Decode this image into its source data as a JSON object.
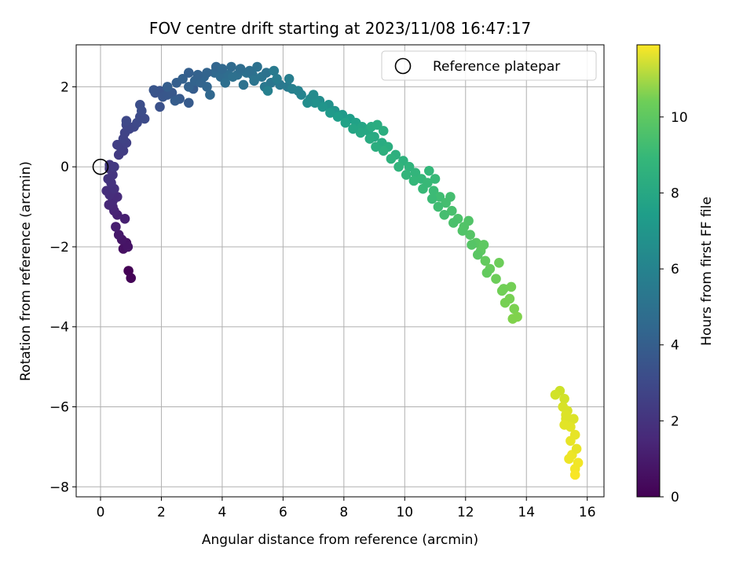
{
  "chart_data": {
    "type": "scatter",
    "title": "FOV centre drift starting at 2023/11/08 16:47:17",
    "xlabel": "Angular distance from reference (arcmin)",
    "ylabel": "Rotation from reference (arcmin)",
    "xlim": [
      -0.8,
      16.55
    ],
    "ylim": [
      -8.25,
      3.05
    ],
    "xticks": [
      0,
      2,
      4,
      6,
      8,
      10,
      12,
      14,
      16
    ],
    "yticks": [
      -8,
      -6,
      -4,
      -2,
      0,
      2
    ],
    "grid": true,
    "legend": {
      "position": "top-right",
      "entries": [
        "Reference platepar"
      ]
    },
    "colorbar": {
      "label": "Hours from first FF file",
      "colormap": "viridis",
      "range": [
        0,
        11.9
      ],
      "ticks": [
        0,
        2,
        4,
        6,
        8,
        10
      ]
    },
    "reference_point": {
      "x": 0,
      "y": 0,
      "label": "Reference platepar"
    },
    "x_unit": "arcmin",
    "y_unit": "arcmin",
    "series": [
      {
        "points_xy": [
          [
            0.92,
            -2.6
          ],
          [
            1.0,
            -2.78
          ],
          [
            0.75,
            -2.05
          ],
          [
            0.85,
            -1.9
          ],
          [
            0.9,
            -2.0
          ],
          [
            0.7,
            -1.82
          ],
          [
            0.6,
            -1.7
          ],
          [
            0.5,
            -1.5
          ],
          [
            0.8,
            -1.3
          ],
          [
            0.55,
            -1.2
          ],
          [
            0.45,
            -1.1
          ],
          [
            0.4,
            -1.0
          ],
          [
            0.28,
            -0.95
          ],
          [
            0.4,
            -0.85
          ],
          [
            0.55,
            -0.75
          ],
          [
            0.3,
            -0.7
          ],
          [
            0.2,
            -0.6
          ],
          [
            0.45,
            -0.55
          ],
          [
            0.35,
            -0.4
          ],
          [
            0.25,
            -0.3
          ],
          [
            0.4,
            -0.2
          ],
          [
            0.3,
            -0.05
          ],
          [
            0.3,
            0.05
          ],
          [
            0.45,
            0.0
          ],
          [
            0.6,
            0.3
          ],
          [
            0.75,
            0.4
          ],
          [
            0.65,
            0.5
          ],
          [
            0.55,
            0.55
          ],
          [
            0.85,
            0.6
          ],
          [
            0.75,
            0.7
          ],
          [
            0.8,
            0.85
          ],
          [
            0.95,
            0.95
          ],
          [
            0.85,
            1.05
          ],
          [
            1.1,
            1.0
          ],
          [
            0.85,
            1.15
          ],
          [
            1.2,
            1.1
          ],
          [
            1.3,
            1.25
          ],
          [
            1.45,
            1.2
          ],
          [
            1.35,
            1.4
          ],
          [
            1.3,
            1.55
          ],
          [
            1.95,
            1.5
          ],
          [
            1.8,
            1.85
          ],
          [
            1.95,
            1.9
          ],
          [
            1.75,
            1.92
          ],
          [
            2.05,
            1.75
          ],
          [
            2.2,
            1.8
          ],
          [
            2.35,
            1.85
          ],
          [
            2.6,
            1.7
          ],
          [
            2.9,
            1.6
          ],
          [
            3.05,
            1.95
          ],
          [
            2.45,
            1.65
          ],
          [
            2.2,
            2.0
          ],
          [
            2.5,
            2.1
          ],
          [
            2.7,
            2.2
          ],
          [
            2.9,
            2.0
          ],
          [
            3.1,
            2.15
          ],
          [
            3.3,
            2.1
          ],
          [
            3.4,
            2.25
          ],
          [
            3.5,
            2.0
          ],
          [
            3.6,
            1.8
          ],
          [
            3.75,
            2.35
          ],
          [
            3.95,
            2.25
          ],
          [
            4.2,
            2.3
          ],
          [
            4.5,
            2.3
          ],
          [
            4.8,
            2.35
          ],
          [
            5.0,
            2.3
          ],
          [
            5.3,
            2.25
          ],
          [
            5.6,
            2.1
          ],
          [
            5.9,
            2.05
          ],
          [
            6.15,
            2.0
          ],
          [
            2.9,
            2.35
          ],
          [
            3.2,
            2.3
          ],
          [
            3.5,
            2.35
          ],
          [
            3.8,
            2.5
          ],
          [
            4.0,
            2.45
          ],
          [
            4.3,
            2.5
          ],
          [
            4.6,
            2.45
          ],
          [
            4.9,
            2.4
          ],
          [
            5.15,
            2.5
          ],
          [
            5.45,
            2.35
          ],
          [
            4.35,
            2.25
          ],
          [
            4.1,
            2.1
          ],
          [
            4.7,
            2.05
          ],
          [
            5.05,
            2.15
          ],
          [
            5.4,
            2.0
          ],
          [
            5.8,
            2.2
          ],
          [
            6.3,
            1.95
          ],
          [
            6.6,
            1.8
          ],
          [
            6.9,
            1.7
          ],
          [
            7.2,
            1.65
          ],
          [
            7.5,
            1.55
          ],
          [
            7.7,
            1.4
          ],
          [
            7.95,
            1.3
          ],
          [
            8.2,
            1.2
          ],
          [
            8.4,
            1.1
          ],
          [
            8.6,
            1.0
          ],
          [
            8.8,
            0.9
          ],
          [
            9.0,
            0.75
          ],
          [
            9.25,
            0.6
          ],
          [
            9.45,
            0.5
          ],
          [
            9.7,
            0.3
          ],
          [
            9.95,
            0.15
          ],
          [
            10.15,
            0.0
          ],
          [
            10.35,
            -0.15
          ],
          [
            10.55,
            -0.3
          ],
          [
            10.75,
            -0.4
          ],
          [
            10.95,
            -0.6
          ],
          [
            11.15,
            -0.75
          ],
          [
            11.35,
            -0.9
          ],
          [
            11.55,
            -1.1
          ],
          [
            11.75,
            -1.3
          ],
          [
            11.95,
            -1.5
          ],
          [
            12.15,
            -1.7
          ],
          [
            12.35,
            -1.9
          ],
          [
            12.5,
            -2.1
          ],
          [
            12.65,
            -2.35
          ],
          [
            12.8,
            -2.55
          ],
          [
            13.0,
            -2.8
          ],
          [
            13.25,
            -3.05
          ],
          [
            13.45,
            -3.3
          ],
          [
            13.6,
            -3.55
          ],
          [
            13.7,
            -3.75
          ],
          [
            13.55,
            -3.8
          ],
          [
            13.3,
            -3.4
          ],
          [
            13.2,
            -3.1
          ],
          [
            13.5,
            -3.0
          ],
          [
            12.7,
            -2.65
          ],
          [
            12.4,
            -2.2
          ],
          [
            12.2,
            -1.95
          ],
          [
            11.9,
            -1.6
          ],
          [
            11.6,
            -1.4
          ],
          [
            11.3,
            -1.2
          ],
          [
            11.1,
            -1.0
          ],
          [
            10.9,
            -0.8
          ],
          [
            10.6,
            -0.55
          ],
          [
            10.3,
            -0.35
          ],
          [
            10.05,
            -0.2
          ],
          [
            9.8,
            0.0
          ],
          [
            9.55,
            0.2
          ],
          [
            9.3,
            0.4
          ],
          [
            9.05,
            0.5
          ],
          [
            8.85,
            0.7
          ],
          [
            8.55,
            0.85
          ],
          [
            8.3,
            0.95
          ],
          [
            8.05,
            1.1
          ],
          [
            7.8,
            1.25
          ],
          [
            7.55,
            1.35
          ],
          [
            7.3,
            1.5
          ],
          [
            7.05,
            1.6
          ],
          [
            6.8,
            1.6
          ],
          [
            8.9,
            1.0
          ],
          [
            9.1,
            1.05
          ],
          [
            9.3,
            0.9
          ],
          [
            7.0,
            1.8
          ],
          [
            6.5,
            1.9
          ],
          [
            6.2,
            2.2
          ],
          [
            5.7,
            2.4
          ],
          [
            5.5,
            1.9
          ],
          [
            11.0,
            -0.3
          ],
          [
            10.8,
            -0.1
          ],
          [
            11.5,
            -0.75
          ],
          [
            12.1,
            -1.35
          ],
          [
            12.6,
            -1.95
          ],
          [
            13.1,
            -2.4
          ],
          [
            15.1,
            -5.6
          ],
          [
            14.95,
            -5.7
          ],
          [
            15.25,
            -5.8
          ],
          [
            15.2,
            -6.0
          ],
          [
            15.35,
            -6.1
          ],
          [
            15.3,
            -6.3
          ],
          [
            15.55,
            -6.3
          ],
          [
            15.45,
            -6.5
          ],
          [
            15.25,
            -6.45
          ],
          [
            15.6,
            -6.7
          ],
          [
            15.45,
            -6.85
          ],
          [
            15.5,
            -7.2
          ],
          [
            15.7,
            -7.4
          ],
          [
            15.6,
            -7.55
          ],
          [
            15.6,
            -7.7
          ],
          [
            15.4,
            -7.3
          ],
          [
            15.65,
            -7.05
          ],
          [
            15.3,
            -6.2
          ]
        ],
        "hours": [
          0.05,
          0.1,
          0.5,
          0.6,
          0.65,
          0.7,
          0.8,
          1.0,
          1.05,
          1.1,
          1.2,
          1.3,
          1.35,
          1.4,
          1.5,
          1.55,
          1.6,
          1.7,
          1.75,
          1.8,
          1.85,
          1.9,
          1.95,
          2.0,
          2.1,
          2.15,
          2.2,
          2.25,
          2.3,
          2.35,
          2.4,
          2.45,
          2.5,
          2.55,
          2.6,
          2.65,
          2.7,
          2.75,
          2.8,
          2.85,
          3.0,
          3.05,
          3.1,
          3.15,
          3.2,
          3.25,
          3.3,
          3.35,
          3.4,
          3.45,
          3.5,
          3.55,
          3.6,
          3.65,
          3.7,
          3.75,
          3.8,
          3.85,
          3.9,
          3.95,
          4.0,
          4.1,
          4.2,
          4.3,
          4.4,
          4.5,
          4.6,
          4.7,
          4.8,
          4.9,
          3.6,
          3.7,
          3.8,
          3.9,
          4.0,
          4.1,
          4.2,
          4.3,
          4.4,
          4.5,
          4.35,
          4.3,
          4.45,
          4.6,
          4.8,
          5.0,
          5.2,
          5.4,
          5.6,
          5.8,
          6.0,
          6.2,
          6.4,
          6.6,
          6.8,
          7.0,
          7.1,
          7.2,
          7.3,
          7.4,
          7.5,
          7.6,
          7.7,
          7.8,
          7.9,
          8.0,
          8.1,
          8.2,
          8.3,
          8.4,
          8.5,
          8.6,
          8.7,
          8.8,
          8.9,
          9.0,
          9.1,
          9.2,
          9.3,
          9.4,
          9.5,
          9.6,
          9.6,
          9.4,
          9.3,
          9.35,
          9.0,
          8.8,
          8.7,
          8.6,
          8.45,
          8.3,
          8.2,
          8.1,
          8.0,
          7.9,
          7.8,
          7.7,
          7.6,
          7.5,
          7.4,
          7.3,
          7.1,
          7.0,
          6.8,
          6.6,
          6.4,
          6.2,
          6.0,
          5.8,
          7.3,
          7.35,
          7.4,
          5.7,
          5.3,
          5.1,
          4.9,
          5.2,
          8.0,
          7.9,
          8.3,
          8.6,
          8.9,
          9.2,
          11.0,
          11.1,
          11.1,
          11.2,
          11.2,
          11.3,
          11.3,
          11.4,
          11.4,
          11.5,
          11.5,
          11.6,
          11.7,
          11.7,
          11.8,
          11.6,
          11.5,
          11.3
        ]
      }
    ]
  }
}
